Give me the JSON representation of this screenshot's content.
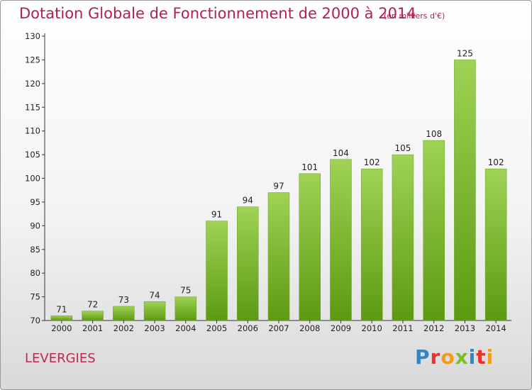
{
  "header": {
    "title": "Dotation Globale de Fonctionnement de 2000 à 2014",
    "unit": "(en milliers d'€)"
  },
  "footer": {
    "commune": "LEVERGIES",
    "logo": "Proxiti"
  },
  "logo_colors": [
    "#2e86c8",
    "#e8332a",
    "#f39c1a",
    "#7bbf2a",
    "#2e86c8",
    "#e8332a",
    "#f39c1a"
  ],
  "colors": {
    "bar_top": "#9fd255",
    "bar_bottom": "#5c9a12",
    "title": "#b51f4a"
  },
  "chart_data": {
    "type": "bar",
    "categories": [
      "2000",
      "2001",
      "2002",
      "2003",
      "2004",
      "2005",
      "2006",
      "2007",
      "2008",
      "2009",
      "2010",
      "2011",
      "2012",
      "2013",
      "2014"
    ],
    "values": [
      71,
      72,
      73,
      74,
      75,
      91,
      94,
      97,
      101,
      104,
      102,
      105,
      108,
      125,
      102
    ],
    "value_labels": [
      "71",
      "72",
      "73",
      "74",
      "75",
      "91",
      "94",
      "97",
      "101",
      "104",
      "102",
      "105",
      "108",
      "125",
      "102"
    ],
    "ylim": [
      70,
      130
    ],
    "yticks": [
      70,
      75,
      80,
      85,
      90,
      95,
      100,
      105,
      110,
      115,
      120,
      125,
      130
    ],
    "ytick_labels": [
      "70",
      "75",
      "80",
      "85",
      "90",
      "95",
      "100",
      "105",
      "110",
      "115",
      "120",
      "125",
      "130"
    ],
    "grid": false,
    "legend": "none"
  }
}
